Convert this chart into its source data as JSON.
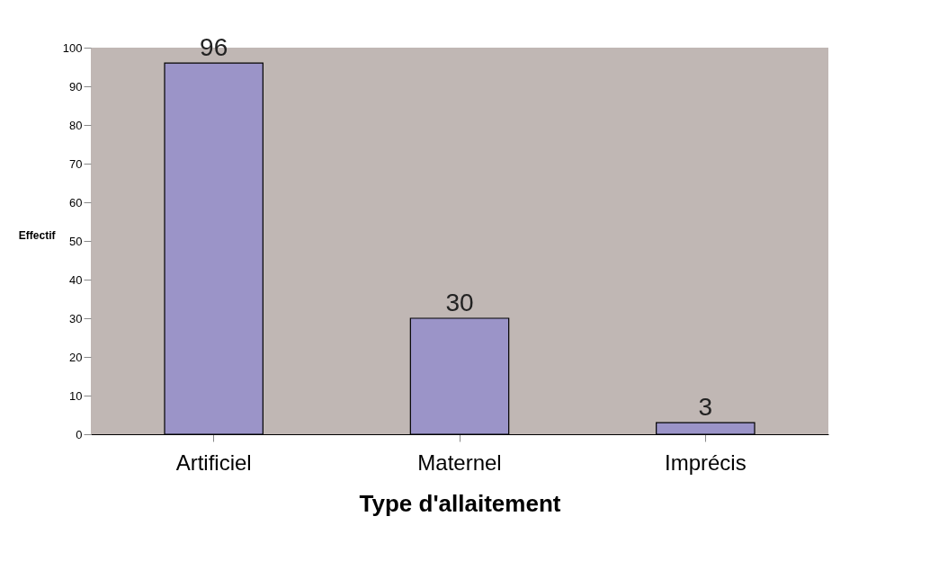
{
  "chart_data": {
    "type": "bar",
    "xlabel": "Type d'allaitement",
    "ylabel": "Effectif",
    "categories": [
      "Artificiel",
      "Maternel",
      "Imprécis"
    ],
    "values": [
      96,
      30,
      3
    ],
    "color": "#9b94c8",
    "ylim": [
      0,
      100
    ],
    "yticks": [
      0,
      10,
      20,
      30,
      40,
      50,
      60,
      70,
      80,
      90,
      100
    ],
    "data_labels": true,
    "grid": false
  }
}
